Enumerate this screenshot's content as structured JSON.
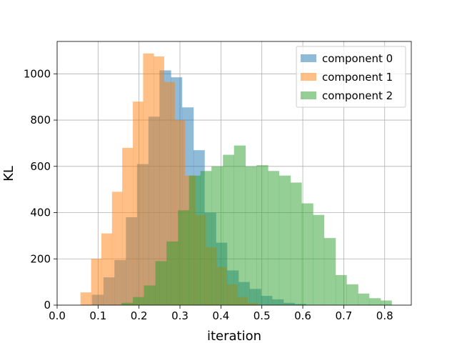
{
  "chart_data": {
    "type": "histogram",
    "xlabel": "iteration",
    "ylabel": "KL",
    "xlim": [
      0.0,
      0.865
    ],
    "ylim": [
      0,
      1140
    ],
    "xticks": [
      "0.0",
      "0.1",
      "0.2",
      "0.3",
      "0.4",
      "0.5",
      "0.6",
      "0.7",
      "0.8"
    ],
    "xtick_values": [
      0.0,
      0.1,
      0.2,
      0.3,
      0.4,
      0.5,
      0.6,
      0.7,
      0.8
    ],
    "yticks": [
      "0",
      "200",
      "400",
      "600",
      "800",
      "1000"
    ],
    "ytick_values": [
      0,
      200,
      400,
      600,
      800,
      1000
    ],
    "grid": true,
    "legend_position": "top-right",
    "alpha": 0.5,
    "series": [
      {
        "name": "component 0",
        "color": "#1f77b4",
        "edges": [
          0.085,
          0.113,
          0.14,
          0.168,
          0.195,
          0.223,
          0.25,
          0.278,
          0.305,
          0.333,
          0.36,
          0.388,
          0.415,
          0.443,
          0.47,
          0.498,
          0.525,
          0.553,
          0.58,
          0.608
        ],
        "counts": [
          45,
          120,
          195,
          380,
          610,
          815,
          1015,
          985,
          855,
          670,
          400,
          270,
          150,
          100,
          70,
          40,
          25,
          10,
          5
        ]
      },
      {
        "name": "component 1",
        "color": "#ff7f0e",
        "edges": [
          0.057,
          0.083,
          0.108,
          0.134,
          0.159,
          0.185,
          0.21,
          0.236,
          0.261,
          0.287,
          0.312,
          0.338,
          0.363,
          0.389,
          0.414,
          0.44,
          0.465,
          0.491
        ],
        "counts": [
          55,
          200,
          310,
          490,
          680,
          880,
          1088,
          1075,
          965,
          800,
          560,
          390,
          250,
          165,
          90,
          35,
          10
        ]
      },
      {
        "name": "component 2",
        "color": "#2ca02c",
        "edges": [
          0.157,
          0.185,
          0.212,
          0.24,
          0.267,
          0.295,
          0.322,
          0.35,
          0.377,
          0.405,
          0.432,
          0.46,
          0.487,
          0.515,
          0.542,
          0.57,
          0.597,
          0.625,
          0.652,
          0.68,
          0.707,
          0.735,
          0.762,
          0.79,
          0.817
        ],
        "counts": [
          10,
          35,
          85,
          190,
          275,
          410,
          560,
          580,
          600,
          650,
          690,
          600,
          605,
          580,
          560,
          530,
          440,
          390,
          290,
          130,
          90,
          50,
          30,
          20
        ]
      }
    ]
  }
}
